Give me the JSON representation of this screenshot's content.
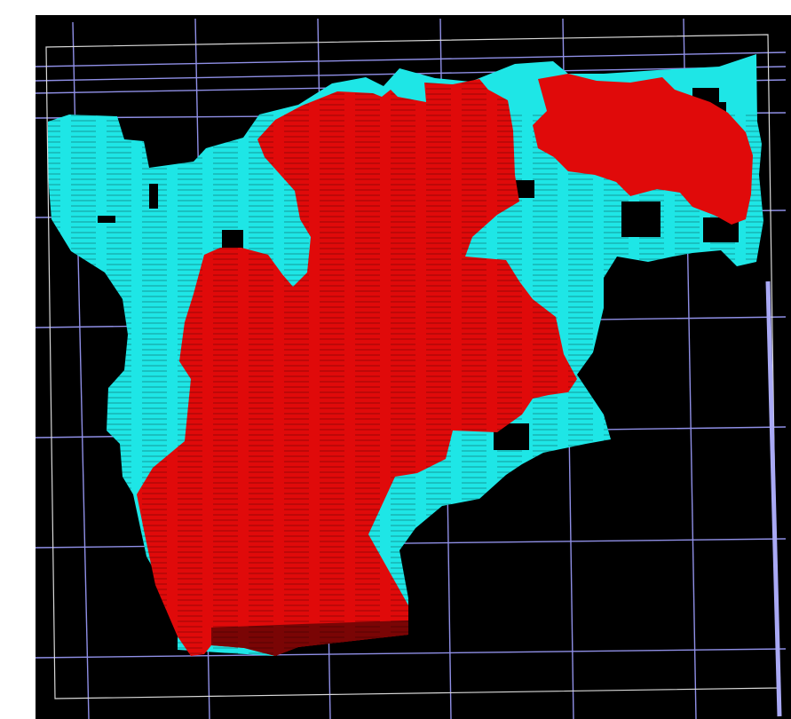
{
  "viewport": {
    "background_color": "#000000"
  },
  "colors": {
    "grid_line": "#8f8fe6",
    "bounding_box": "#d8d8d8",
    "outer_region": "#1ee6e6",
    "inner_region": "#e00a0a",
    "inner_region_shadow": "#7a0505",
    "right_edge": "#a9a9f5"
  },
  "icons": {
    "outer_region": "cyan-volume-region",
    "inner_region": "red-volume-region"
  }
}
